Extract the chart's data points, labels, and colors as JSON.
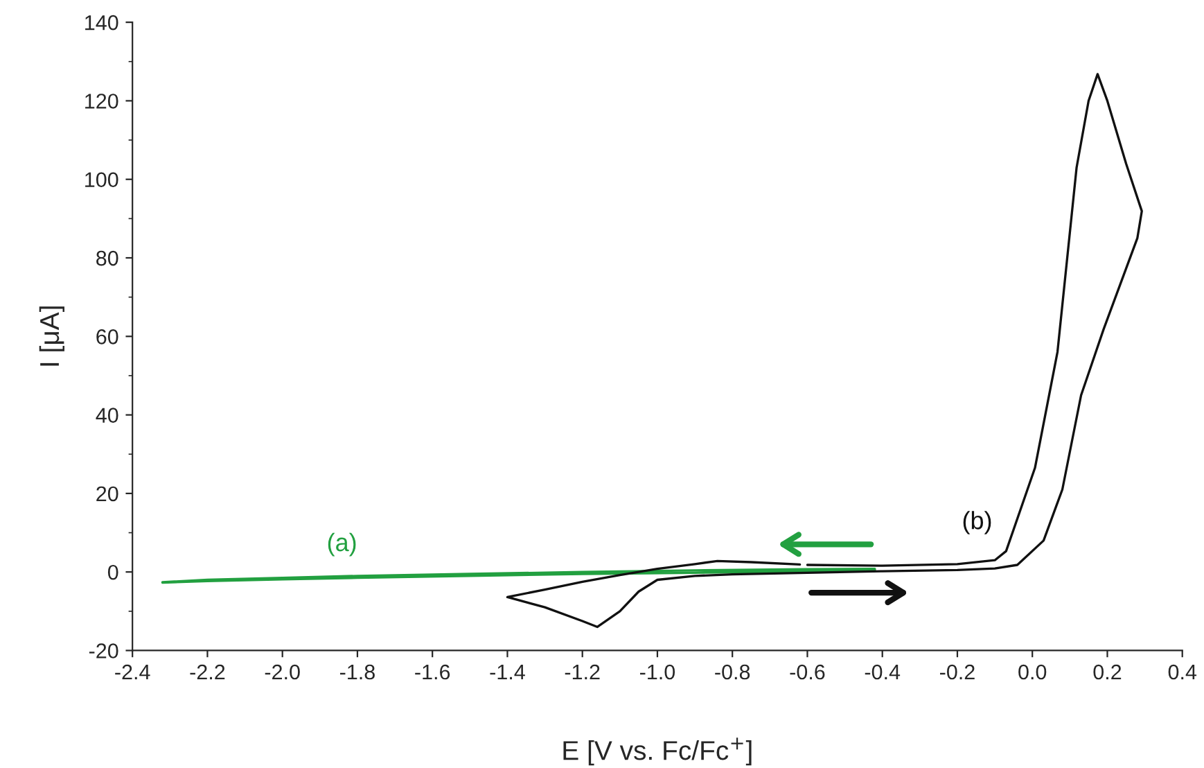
{
  "chart_data": {
    "type": "line",
    "xlabel": "E [V vs. Fc/Fc$^{+}$]",
    "ylabel": "I [μA]",
    "xlim": [
      -2.4,
      0.4
    ],
    "ylim": [
      -20,
      140
    ],
    "xticks": [
      {
        "value": -2.4,
        "label": "-2.4"
      },
      {
        "value": -2.2,
        "label": "-2.2"
      },
      {
        "value": -2.0,
        "label": "-2.0"
      },
      {
        "value": -1.8,
        "label": "-1.8"
      },
      {
        "value": -1.6,
        "label": "-1.6"
      },
      {
        "value": -1.4,
        "label": "-1.4"
      },
      {
        "value": -1.2,
        "label": "-1.2"
      },
      {
        "value": -1.0,
        "label": "-1.0"
      },
      {
        "value": -0.8,
        "label": "-0.8"
      },
      {
        "value": -0.6,
        "label": "-0.6"
      },
      {
        "value": -0.4,
        "label": "-0.4"
      },
      {
        "value": -0.2,
        "label": "-0.2"
      },
      {
        "value": 0,
        "label": "0.0"
      },
      {
        "value": 0.2,
        "label": "0.2"
      },
      {
        "value": 0.4,
        "label": "0.4"
      }
    ],
    "yticks": [
      -20,
      0,
      20,
      40,
      60,
      80,
      100,
      120,
      140
    ],
    "grid": false,
    "legend": false,
    "marker": "none",
    "line_style": "solid",
    "series": [
      {
        "name": "(a)",
        "color": "#22a040",
        "x": [
          -2.32,
          -2.2,
          -2.0,
          -1.8,
          -1.5,
          -1.2,
          -0.9,
          -0.6,
          -0.42,
          -0.42,
          -0.6,
          -0.9,
          -1.2,
          -1.5,
          -1.8,
          -2.0,
          -2.2,
          -2.32
        ],
        "values": [
          -2.6,
          -2.0,
          -1.5,
          -1.0,
          -0.5,
          0,
          0.4,
          0.7,
          0.8,
          0.3,
          0.1,
          -0.2,
          -0.5,
          -1.0,
          -1.5,
          -1.9,
          -2.3,
          -2.7
        ]
      },
      {
        "name": "(b)",
        "color": "#111111",
        "x": [
          -0.6,
          -0.4,
          -0.2,
          -0.1,
          -0.07,
          0.007,
          0.067,
          0.118,
          0.15,
          0.174,
          0.2,
          0.25,
          0.292,
          0.28,
          0.19,
          0.13,
          0.08,
          0.03,
          -0.04,
          -0.1,
          -0.2,
          -0.4,
          -0.6,
          -0.8,
          -0.9,
          -1.0,
          -1.05,
          -1.1,
          -1.16,
          -1.2,
          -1.3,
          -1.4,
          -1.3,
          -1.2,
          -1.1,
          -1.0,
          -0.9,
          -0.84,
          -0.75,
          -0.62
        ],
        "values": [
          1.8,
          1.6,
          2.0,
          3.0,
          5.3,
          26.5,
          56,
          103,
          120,
          126.8,
          120,
          104,
          91.9,
          85,
          61.8,
          45,
          21,
          8,
          1.8,
          0.9,
          0.5,
          0.2,
          -0.2,
          -0.6,
          -1.0,
          -2.0,
          -5.0,
          -10,
          -14,
          -12.5,
          -9,
          -6.4,
          -4.5,
          -2.5,
          -0.8,
          0.8,
          2.0,
          2.8,
          2.5,
          1.9
        ]
      }
    ]
  }
}
